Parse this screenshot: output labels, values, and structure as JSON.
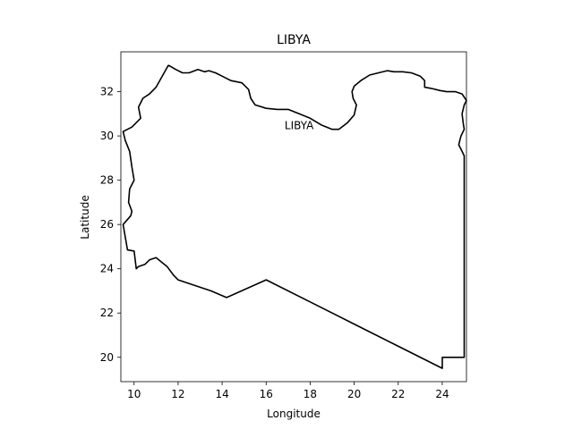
{
  "chart_data": {
    "type": "line",
    "title": "LIBYA",
    "xlabel": "Longitude",
    "ylabel": "Latitude",
    "xlim": [
      9.4,
      25.1
    ],
    "ylim": [
      18.9,
      33.8
    ],
    "grid": false,
    "xticks": [
      10,
      12,
      14,
      16,
      18,
      20,
      22,
      24
    ],
    "yticks": [
      20,
      22,
      24,
      26,
      28,
      30,
      32
    ],
    "annotation": {
      "text": "LIBYA",
      "x": 17.5,
      "y": 30.5
    },
    "line_color": "#000000",
    "series": [
      {
        "x": [
          11.56,
          11.9,
          12.2,
          12.5,
          12.9,
          13.2,
          13.4,
          13.7,
          14.0,
          14.4,
          14.9,
          15.2,
          15.3,
          15.5,
          16.0,
          16.5,
          17.0,
          17.5,
          18.0,
          18.5,
          19.0,
          19.3,
          19.7,
          20.0,
          20.1,
          19.95,
          19.9,
          20.0,
          20.3,
          20.7,
          21.1,
          21.5,
          21.8,
          22.2,
          22.6,
          23.0,
          23.2,
          23.2,
          23.5,
          23.9,
          24.2,
          24.6,
          24.9,
          25.1,
          25.0,
          24.9,
          24.95,
          25.0,
          24.85,
          24.8,
          24.75,
          24.9,
          25.0,
          25.0,
          24.0,
          24.0,
          22.0,
          20.0,
          18.0,
          16.0,
          14.2,
          13.5,
          12.0,
          11.8,
          11.5,
          11.0,
          10.7,
          10.5,
          10.2,
          10.1,
          10.0,
          9.7,
          9.5,
          9.85,
          9.9,
          9.75,
          9.8,
          10.0,
          9.9,
          9.8,
          9.6,
          9.5,
          9.9,
          10.3,
          10.2,
          10.4,
          10.7,
          11.0,
          11.56
        ],
        "y": [
          33.2,
          33.0,
          32.85,
          32.85,
          33.0,
          32.9,
          32.95,
          32.85,
          32.7,
          32.5,
          32.4,
          32.1,
          31.7,
          31.4,
          31.25,
          31.2,
          31.2,
          31.0,
          30.8,
          30.5,
          30.3,
          30.3,
          30.6,
          30.95,
          31.4,
          31.7,
          32.0,
          32.25,
          32.5,
          32.75,
          32.85,
          32.95,
          32.9,
          32.9,
          32.85,
          32.7,
          32.5,
          32.2,
          32.15,
          32.05,
          32.0,
          32.0,
          31.9,
          31.6,
          31.4,
          31.0,
          30.6,
          30.3,
          30.0,
          29.8,
          29.6,
          29.3,
          29.1,
          20.0,
          20.0,
          19.5,
          20.5,
          21.5,
          22.5,
          23.5,
          22.7,
          23.0,
          23.5,
          23.7,
          24.1,
          24.5,
          24.4,
          24.2,
          24.1,
          24.0,
          24.8,
          24.85,
          26.0,
          26.4,
          26.6,
          27.0,
          27.6,
          28.0,
          28.6,
          29.3,
          29.8,
          30.2,
          30.4,
          30.8,
          31.3,
          31.7,
          31.9,
          32.2,
          33.2
        ]
      }
    ]
  }
}
